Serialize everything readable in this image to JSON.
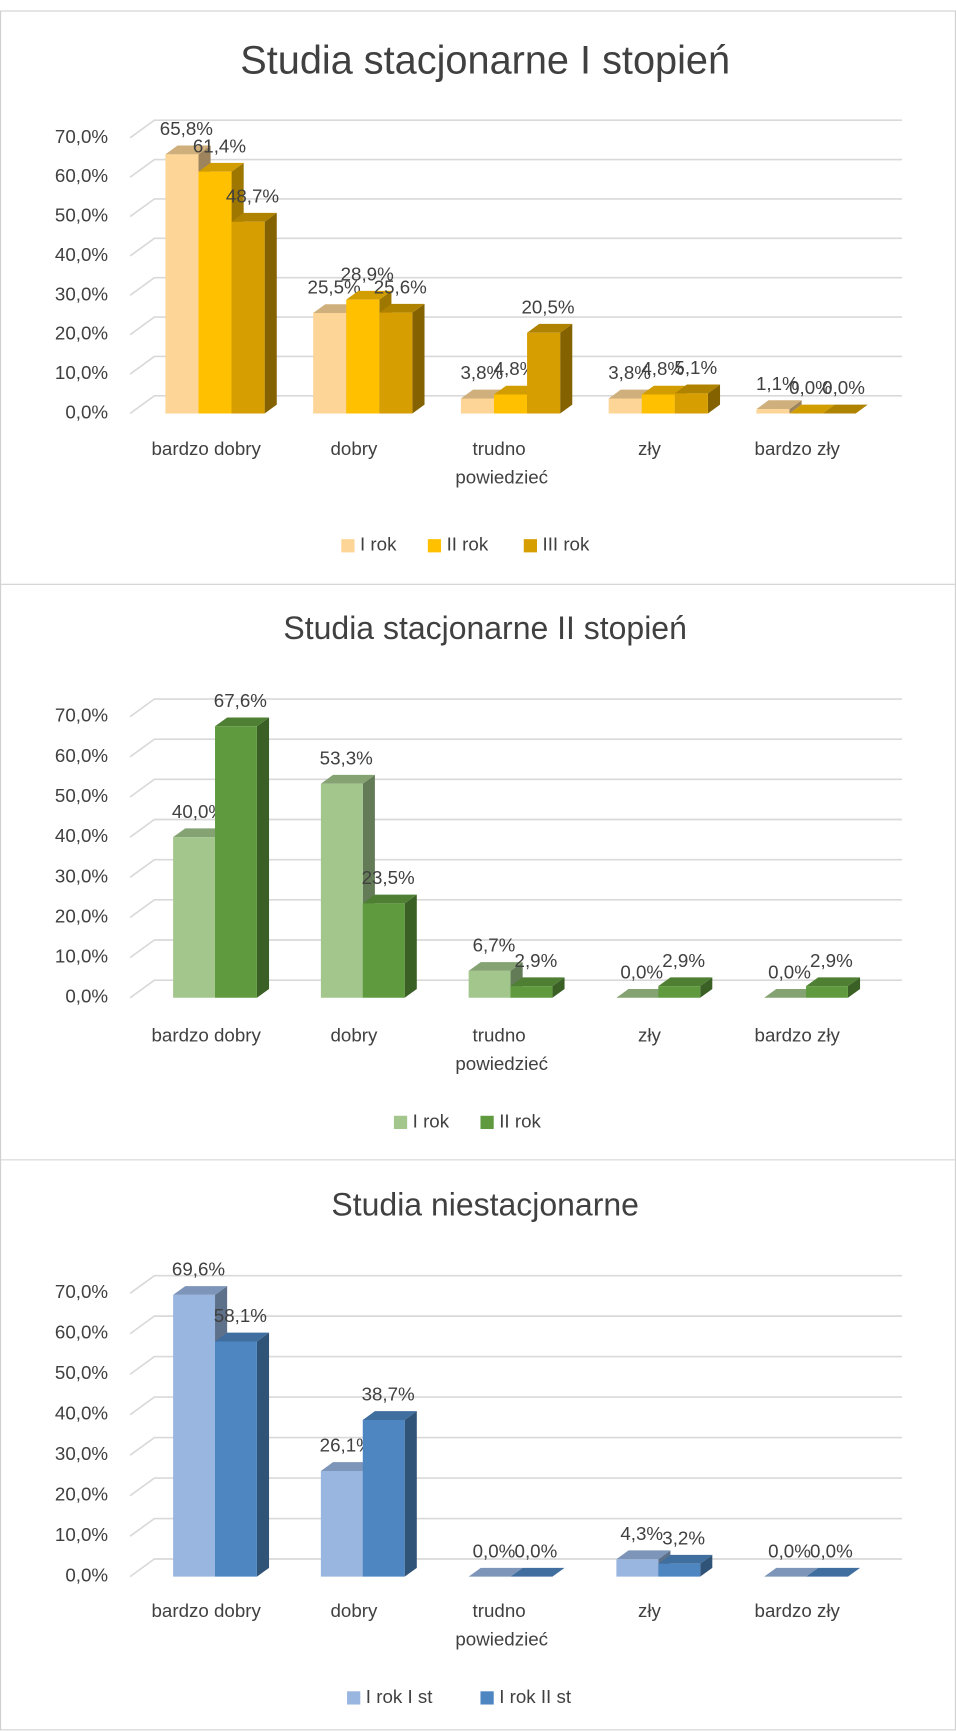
{
  "chart_data": [
    {
      "type": "bar3d",
      "title": "Studia stacjonarne I stopień",
      "categories": [
        "bardzo dobry",
        "dobry",
        "trudno powiedzieć",
        "zły",
        "bardzo zły"
      ],
      "series": [
        {
          "name": "I rok",
          "color": "#fdd596",
          "values": [
            65.8,
            25.5,
            3.8,
            3.8,
            1.1
          ],
          "value_labels": [
            "65,8%",
            "25,5%",
            "3,8%",
            "3,8%",
            "1,1%"
          ]
        },
        {
          "name": "II rok",
          "color": "#ffc000",
          "values": [
            61.4,
            28.9,
            4.8,
            4.8,
            0.0
          ],
          "value_labels": [
            "61,4%",
            "28,9%",
            "4,8%",
            "4,8%",
            "0,0%"
          ]
        },
        {
          "name": "III rok",
          "color": "#d69e00",
          "values": [
            48.7,
            25.6,
            20.5,
            5.1,
            0.0
          ],
          "value_labels": [
            "48,7%",
            "25,6%",
            "20,5%",
            "5,1%",
            "0,0%"
          ]
        }
      ],
      "ylim": [
        0,
        70
      ],
      "yticks": [
        {
          "value": 0,
          "label": "0,0%"
        },
        {
          "value": 10,
          "label": "10,0%"
        },
        {
          "value": 20,
          "label": "20,0%"
        },
        {
          "value": 30,
          "label": "30,0%"
        },
        {
          "value": 40,
          "label": "40,0%"
        },
        {
          "value": 50,
          "label": "50,0%"
        },
        {
          "value": 60,
          "label": "60,0%"
        },
        {
          "value": 70,
          "label": "70,0%"
        }
      ],
      "grid": true,
      "legend": "bottom"
    },
    {
      "type": "bar3d",
      "title": "Studia stacjonarne II stopień",
      "categories": [
        "bardzo dobry",
        "dobry",
        "trudno powiedzieć",
        "zły",
        "bardzo zły"
      ],
      "series": [
        {
          "name": "I rok",
          "color": "#a2c68c",
          "values": [
            40.0,
            53.3,
            6.7,
            0.0,
            0.0
          ],
          "value_labels": [
            "40,0%",
            "53,3%",
            "6,7%",
            "0,0%",
            "0,0%"
          ]
        },
        {
          "name": "II rok",
          "color": "#5f9b3e",
          "values": [
            67.6,
            23.5,
            2.9,
            2.9,
            2.9
          ],
          "value_labels": [
            "67,6%",
            "23,5%",
            "2,9%",
            "2,9%",
            "2,9%"
          ]
        }
      ],
      "ylim": [
        0,
        70
      ],
      "yticks": [
        {
          "value": 0,
          "label": "0,0%"
        },
        {
          "value": 10,
          "label": "10,0%"
        },
        {
          "value": 20,
          "label": "20,0%"
        },
        {
          "value": 30,
          "label": "30,0%"
        },
        {
          "value": 40,
          "label": "40,0%"
        },
        {
          "value": 50,
          "label": "50,0%"
        },
        {
          "value": 60,
          "label": "60,0%"
        },
        {
          "value": 70,
          "label": "70,0%"
        }
      ],
      "grid": true,
      "legend": "bottom"
    },
    {
      "type": "bar3d",
      "title": "Studia niestacjonarne",
      "categories": [
        "bardzo dobry",
        "dobry",
        "trudno powiedzieć",
        "zły",
        "bardzo zły"
      ],
      "series": [
        {
          "name": "I rok I st",
          "color": "#98b6e0",
          "values": [
            69.6,
            26.1,
            0.0,
            4.3,
            0.0
          ],
          "value_labels": [
            "69,6%",
            "26,1%",
            "0,0%",
            "4,3%",
            "0,0%"
          ]
        },
        {
          "name": "I rok II st",
          "color": "#4e86c2",
          "values": [
            58.1,
            38.7,
            0.0,
            3.2,
            0.0
          ],
          "value_labels": [
            "58,1%",
            "38,7%",
            "0,0%",
            "3,2%",
            "0,0%"
          ]
        }
      ],
      "ylim": [
        0,
        70
      ],
      "yticks": [
        {
          "value": 0,
          "label": "0,0%"
        },
        {
          "value": 10,
          "label": "10,0%"
        },
        {
          "value": 20,
          "label": "20,0%"
        },
        {
          "value": 30,
          "label": "30,0%"
        },
        {
          "value": 40,
          "label": "40,0%"
        },
        {
          "value": 50,
          "label": "50,0%"
        },
        {
          "value": 60,
          "label": "60,0%"
        },
        {
          "value": 70,
          "label": "70,0%"
        }
      ],
      "grid": true,
      "legend": "bottom"
    }
  ]
}
